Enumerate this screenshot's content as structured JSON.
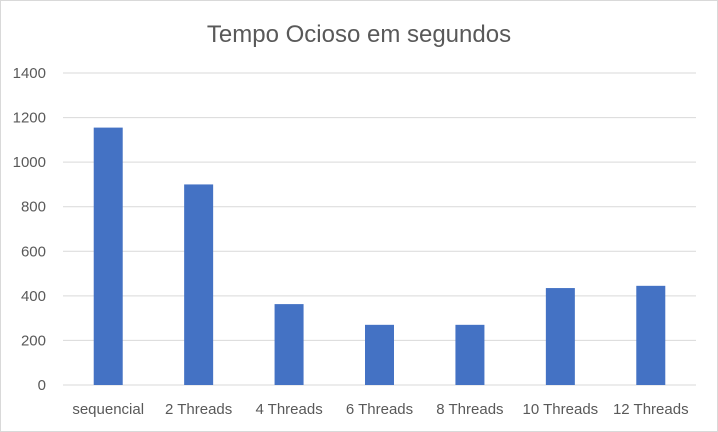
{
  "chart_data": {
    "type": "bar",
    "title": "Tempo Ocioso em segundos",
    "categories": [
      "sequencial",
      "2 Threads",
      "4 Threads",
      "6 Threads",
      "8 Threads",
      "10 Threads",
      "12 Threads"
    ],
    "series": [
      {
        "values": [
          1155,
          900,
          363,
          270,
          270,
          435,
          445
        ]
      }
    ],
    "ylim": [
      0,
      1400
    ],
    "yticks": [
      0,
      200,
      400,
      600,
      800,
      1000,
      1200,
      1400
    ],
    "grid": true,
    "colors": {
      "bar": "#4472c4",
      "grid": "#d9d9d9",
      "text": "#595959"
    }
  }
}
